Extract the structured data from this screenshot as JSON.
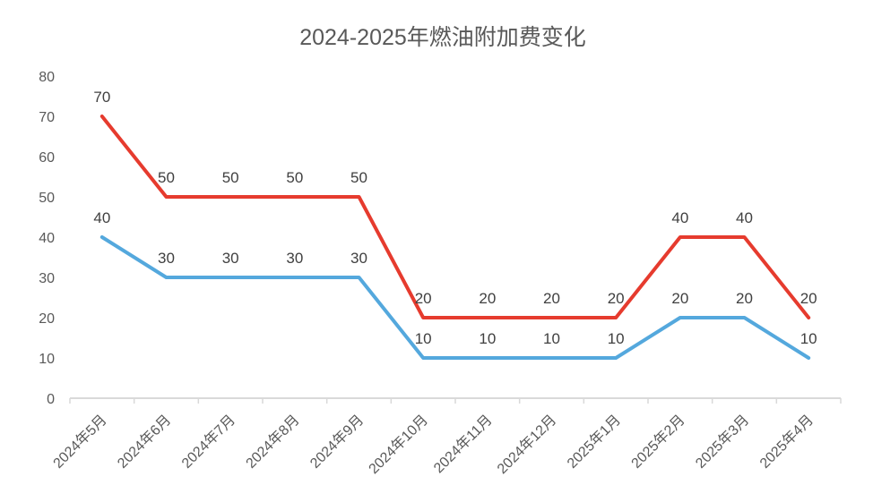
{
  "chart_data": {
    "type": "line",
    "title": "2024-2025年燃油附加费变化",
    "categories": [
      "2024年5月",
      "2024年6月",
      "2024年7月",
      "2024年8月",
      "2024年9月",
      "2024年10月",
      "2024年11月",
      "2024年12月",
      "2025年1月",
      "2025年2月",
      "2025年3月",
      "2025年4月"
    ],
    "series": [
      {
        "name": "red-series",
        "color": "#e63b2e",
        "values": [
          70,
          50,
          50,
          50,
          50,
          20,
          20,
          20,
          20,
          40,
          40,
          20
        ]
      },
      {
        "name": "blue-series",
        "color": "#54a8dd",
        "values": [
          40,
          30,
          30,
          30,
          30,
          10,
          10,
          10,
          10,
          20,
          20,
          10
        ]
      }
    ],
    "ylim": [
      0,
      80
    ],
    "yticks": [
      0,
      10,
      20,
      30,
      40,
      50,
      60,
      70,
      80
    ],
    "data_labels": true,
    "legend": "none",
    "grid": false,
    "colors": {
      "axis_line": "#d9d9d9",
      "tick_label": "#595959",
      "data_label": "#404040",
      "title": "#595959",
      "background": "#ffffff"
    }
  }
}
